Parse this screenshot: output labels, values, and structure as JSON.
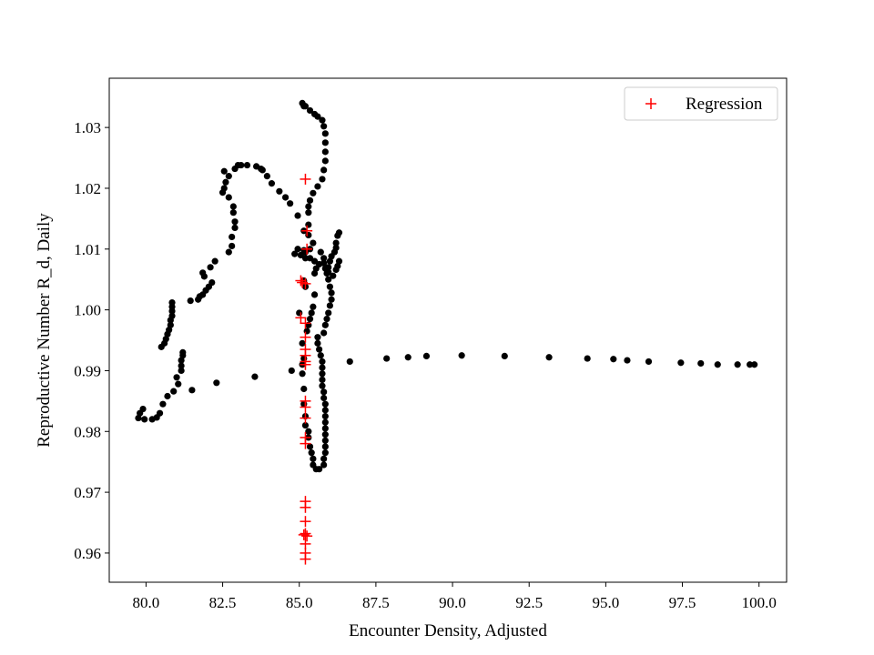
{
  "chart_data": {
    "type": "scatter",
    "title": "",
    "xlabel": "Encounter Density, Adjusted",
    "ylabel": "Reproductive Number R_d, Daily",
    "xlim": [
      78.8,
      100.9
    ],
    "ylim": [
      0.9552,
      1.0381
    ],
    "xticks": [
      "80.0",
      "82.5",
      "85.0",
      "87.5",
      "90.0",
      "92.5",
      "95.0",
      "97.5",
      "100.0"
    ],
    "yticks": [
      "0.96",
      "0.97",
      "0.98",
      "0.99",
      "1.00",
      "1.01",
      "1.02",
      "1.03"
    ],
    "grid": false,
    "legend": {
      "position": "top-right",
      "entries": [
        "Regression"
      ]
    },
    "colors": {
      "data": "#000000",
      "regression": "#ff0000"
    },
    "series": [
      {
        "marker": "circle",
        "color": "#000000",
        "points": [
          [
            79.75,
            0.9822
          ],
          [
            79.8,
            0.983
          ],
          [
            79.9,
            0.9837
          ],
          [
            79.95,
            0.982
          ],
          [
            80.2,
            0.982
          ],
          [
            80.35,
            0.9823
          ],
          [
            80.45,
            0.983
          ],
          [
            80.55,
            0.9845
          ],
          [
            80.7,
            0.9858
          ],
          [
            80.9,
            0.9866
          ],
          [
            81.05,
            0.9878
          ],
          [
            81.5,
            0.9868
          ],
          [
            81.0,
            0.9889
          ],
          [
            81.15,
            0.99
          ],
          [
            81.15,
            0.9908
          ],
          [
            81.15,
            0.9917
          ],
          [
            81.2,
            0.9925
          ],
          [
            81.2,
            0.993
          ],
          [
            80.5,
            0.9939
          ],
          [
            80.6,
            0.9945
          ],
          [
            80.65,
            0.9952
          ],
          [
            80.7,
            0.996
          ],
          [
            80.75,
            0.9967
          ],
          [
            80.8,
            0.9975
          ],
          [
            80.8,
            0.9983
          ],
          [
            80.85,
            0.999
          ],
          [
            80.85,
            0.9998
          ],
          [
            80.85,
            1.0005
          ],
          [
            80.85,
            1.0012
          ],
          [
            81.45,
            1.0015
          ],
          [
            81.7,
            1.0017
          ],
          [
            81.75,
            1.0022
          ],
          [
            81.85,
            1.0025
          ],
          [
            81.95,
            1.0032
          ],
          [
            82.05,
            1.0038
          ],
          [
            82.15,
            1.0045
          ],
          [
            81.9,
            1.0055
          ],
          [
            81.85,
            1.0061
          ],
          [
            82.1,
            1.007
          ],
          [
            82.25,
            1.008
          ],
          [
            82.7,
            1.0095
          ],
          [
            82.8,
            1.0105
          ],
          [
            82.8,
            1.012
          ],
          [
            82.9,
            1.0135
          ],
          [
            82.9,
            1.0145
          ],
          [
            82.85,
            1.016
          ],
          [
            82.85,
            1.017
          ],
          [
            82.7,
            1.0185
          ],
          [
            82.5,
            1.0193
          ],
          [
            82.55,
            1.02
          ],
          [
            82.6,
            1.021
          ],
          [
            82.7,
            1.022
          ],
          [
            82.55,
            1.0228
          ],
          [
            82.9,
            1.0232
          ],
          [
            83.0,
            1.0238
          ],
          [
            83.1,
            1.0238
          ],
          [
            83.3,
            1.0238
          ],
          [
            83.6,
            1.0236
          ],
          [
            83.75,
            1.0232
          ],
          [
            83.8,
            1.023
          ],
          [
            83.95,
            1.022
          ],
          [
            84.1,
            1.0208
          ],
          [
            84.35,
            1.0195
          ],
          [
            84.55,
            1.0185
          ],
          [
            84.7,
            1.0175
          ],
          [
            84.95,
            1.0155
          ],
          [
            85.3,
            1.014
          ],
          [
            85.15,
            1.013
          ],
          [
            85.3,
            1.0123
          ],
          [
            85.45,
            1.011
          ],
          [
            85.35,
            1.01
          ],
          [
            85.2,
            1.0095
          ],
          [
            85.15,
            1.0098
          ],
          [
            84.95,
            1.01
          ],
          [
            84.85,
            1.0092
          ],
          [
            85.05,
            1.009
          ],
          [
            85.2,
            1.0085
          ],
          [
            85.35,
            1.0085
          ],
          [
            85.5,
            1.008
          ],
          [
            85.65,
            1.0075
          ],
          [
            85.55,
            1.0068
          ],
          [
            85.5,
            1.006
          ],
          [
            85.95,
            1.0062
          ],
          [
            85.95,
            1.007
          ],
          [
            86.0,
            1.008
          ],
          [
            86.05,
            1.0088
          ],
          [
            86.15,
            1.0095
          ],
          [
            86.2,
            1.0102
          ],
          [
            86.2,
            1.011
          ],
          [
            86.25,
            1.0122
          ],
          [
            86.3,
            1.0127
          ],
          [
            86.3,
            1.008
          ],
          [
            86.25,
            1.0072
          ],
          [
            86.2,
            1.0066
          ],
          [
            86.1,
            1.0056
          ],
          [
            85.7,
            1.0095
          ],
          [
            85.8,
            1.0085
          ],
          [
            85.8,
            1.0077
          ],
          [
            85.85,
            1.0068
          ],
          [
            85.9,
            1.006
          ],
          [
            85.95,
            1.005
          ],
          [
            86.0,
            1.0038
          ],
          [
            86.05,
            1.0028
          ],
          [
            86.05,
            1.0017
          ],
          [
            86.0,
            1.0007
          ],
          [
            85.95,
            0.9995
          ],
          [
            85.9,
            0.9985
          ],
          [
            85.85,
            0.9975
          ],
          [
            85.8,
            0.9962
          ],
          [
            85.6,
            0.9955
          ],
          [
            85.6,
            0.9945
          ],
          [
            85.65,
            0.9935
          ],
          [
            85.7,
            0.9925
          ],
          [
            85.75,
            0.9915
          ],
          [
            85.75,
            0.9905
          ],
          [
            85.75,
            0.9895
          ],
          [
            85.75,
            0.9885
          ],
          [
            85.75,
            0.9875
          ],
          [
            85.8,
            0.9865
          ],
          [
            85.8,
            0.9855
          ],
          [
            85.85,
            0.9845
          ],
          [
            85.85,
            0.9835
          ],
          [
            85.85,
            0.9825
          ],
          [
            85.85,
            0.9815
          ],
          [
            85.85,
            0.9805
          ],
          [
            85.85,
            0.9795
          ],
          [
            85.85,
            0.9785
          ],
          [
            85.85,
            0.9775
          ],
          [
            85.85,
            0.9765
          ],
          [
            85.8,
            0.9755
          ],
          [
            85.8,
            0.9745
          ],
          [
            85.65,
            0.9738
          ],
          [
            85.55,
            0.9738
          ],
          [
            85.45,
            0.9745
          ],
          [
            85.45,
            0.9755
          ],
          [
            85.4,
            0.9765
          ],
          [
            85.35,
            0.9775
          ],
          [
            85.3,
            0.979
          ],
          [
            85.3,
            0.98
          ],
          [
            85.25,
            0.9965
          ],
          [
            85.3,
            0.9975
          ],
          [
            85.35,
            0.9985
          ],
          [
            85.4,
            0.9995
          ],
          [
            85.45,
            1.0005
          ],
          [
            85.5,
            1.0025
          ],
          [
            85.2,
            1.0038
          ],
          [
            85.15,
            1.0048
          ],
          [
            85.3,
            1.016
          ],
          [
            85.3,
            1.017
          ],
          [
            85.35,
            1.018
          ],
          [
            85.45,
            1.0192
          ],
          [
            85.6,
            1.0203
          ],
          [
            85.75,
            1.0215
          ],
          [
            85.8,
            1.023
          ],
          [
            85.85,
            1.0245
          ],
          [
            85.85,
            1.026
          ],
          [
            85.85,
            1.0275
          ],
          [
            85.85,
            1.029
          ],
          [
            85.8,
            1.0302
          ],
          [
            85.75,
            1.0312
          ],
          [
            85.6,
            1.0318
          ],
          [
            85.5,
            1.0322
          ],
          [
            85.35,
            1.0328
          ],
          [
            85.2,
            1.0335
          ],
          [
            85.1,
            1.034
          ],
          [
            85.15,
            1.0335
          ],
          [
            85.0,
            0.9995
          ],
          [
            85.1,
            0.9945
          ],
          [
            85.15,
            0.992
          ],
          [
            85.1,
            0.991
          ],
          [
            85.1,
            0.9895
          ],
          [
            85.15,
            0.987
          ],
          [
            85.15,
            0.9845
          ],
          [
            85.2,
            0.9825
          ],
          [
            85.2,
            0.981
          ],
          [
            82.3,
            0.988
          ],
          [
            83.55,
            0.989
          ],
          [
            84.75,
            0.99
          ],
          [
            86.65,
            0.9915
          ],
          [
            87.85,
            0.992
          ],
          [
            88.55,
            0.9922
          ],
          [
            89.15,
            0.9924
          ],
          [
            90.3,
            0.9925
          ],
          [
            91.7,
            0.9924
          ],
          [
            93.15,
            0.9922
          ],
          [
            94.4,
            0.992
          ],
          [
            95.25,
            0.9919
          ],
          [
            95.7,
            0.9917
          ],
          [
            96.4,
            0.9915
          ],
          [
            97.45,
            0.9913
          ],
          [
            98.1,
            0.9912
          ],
          [
            98.65,
            0.991
          ],
          [
            99.3,
            0.991
          ],
          [
            99.7,
            0.991
          ],
          [
            99.85,
            0.991
          ]
        ]
      },
      {
        "name": "Regression",
        "marker": "plus",
        "color": "#ff0000",
        "points": [
          [
            85.2,
            1.0215
          ],
          [
            85.25,
            1.013
          ],
          [
            85.25,
            1.01
          ],
          [
            85.05,
            1.0048
          ],
          [
            85.1,
            1.0045
          ],
          [
            85.2,
            1.0043
          ],
          [
            85.05,
            0.9987
          ],
          [
            85.2,
            0.9978
          ],
          [
            85.2,
            0.9955
          ],
          [
            85.2,
            0.9935
          ],
          [
            85.2,
            0.9925
          ],
          [
            85.2,
            0.9915
          ],
          [
            85.2,
            0.991
          ],
          [
            85.2,
            0.985
          ],
          [
            85.2,
            0.984
          ],
          [
            85.2,
            0.9822
          ],
          [
            85.2,
            0.979
          ],
          [
            85.2,
            0.978
          ],
          [
            85.2,
            0.9685
          ],
          [
            85.2,
            0.9675
          ],
          [
            85.2,
            0.9652
          ],
          [
            85.15,
            0.963
          ],
          [
            85.2,
            0.9632
          ],
          [
            85.25,
            0.9628
          ],
          [
            85.2,
            0.9615
          ],
          [
            85.2,
            0.96
          ],
          [
            85.2,
            0.959
          ]
        ]
      }
    ]
  }
}
